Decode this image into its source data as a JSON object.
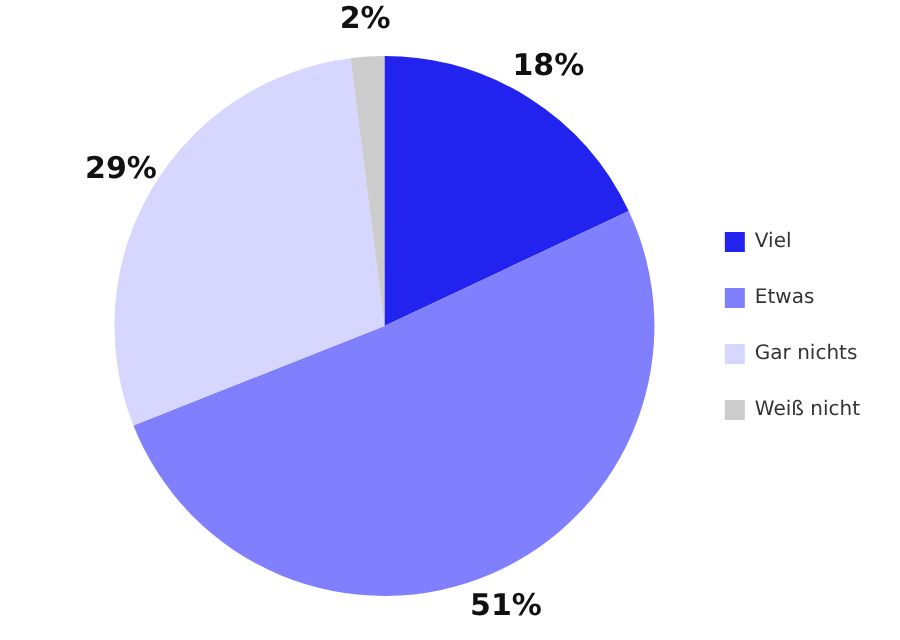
{
  "chart_data": {
    "type": "pie",
    "categories": [
      "Viel",
      "Etwas",
      "Gar nichts",
      "Weiß nicht"
    ],
    "values": [
      18,
      51,
      29,
      2
    ],
    "colors": [
      "#2323f0",
      "#8080ff",
      "#d6d6ff",
      "#cccccc"
    ],
    "value_labels": [
      "18%",
      "51%",
      "29%",
      "2%"
    ],
    "legend": "right"
  }
}
